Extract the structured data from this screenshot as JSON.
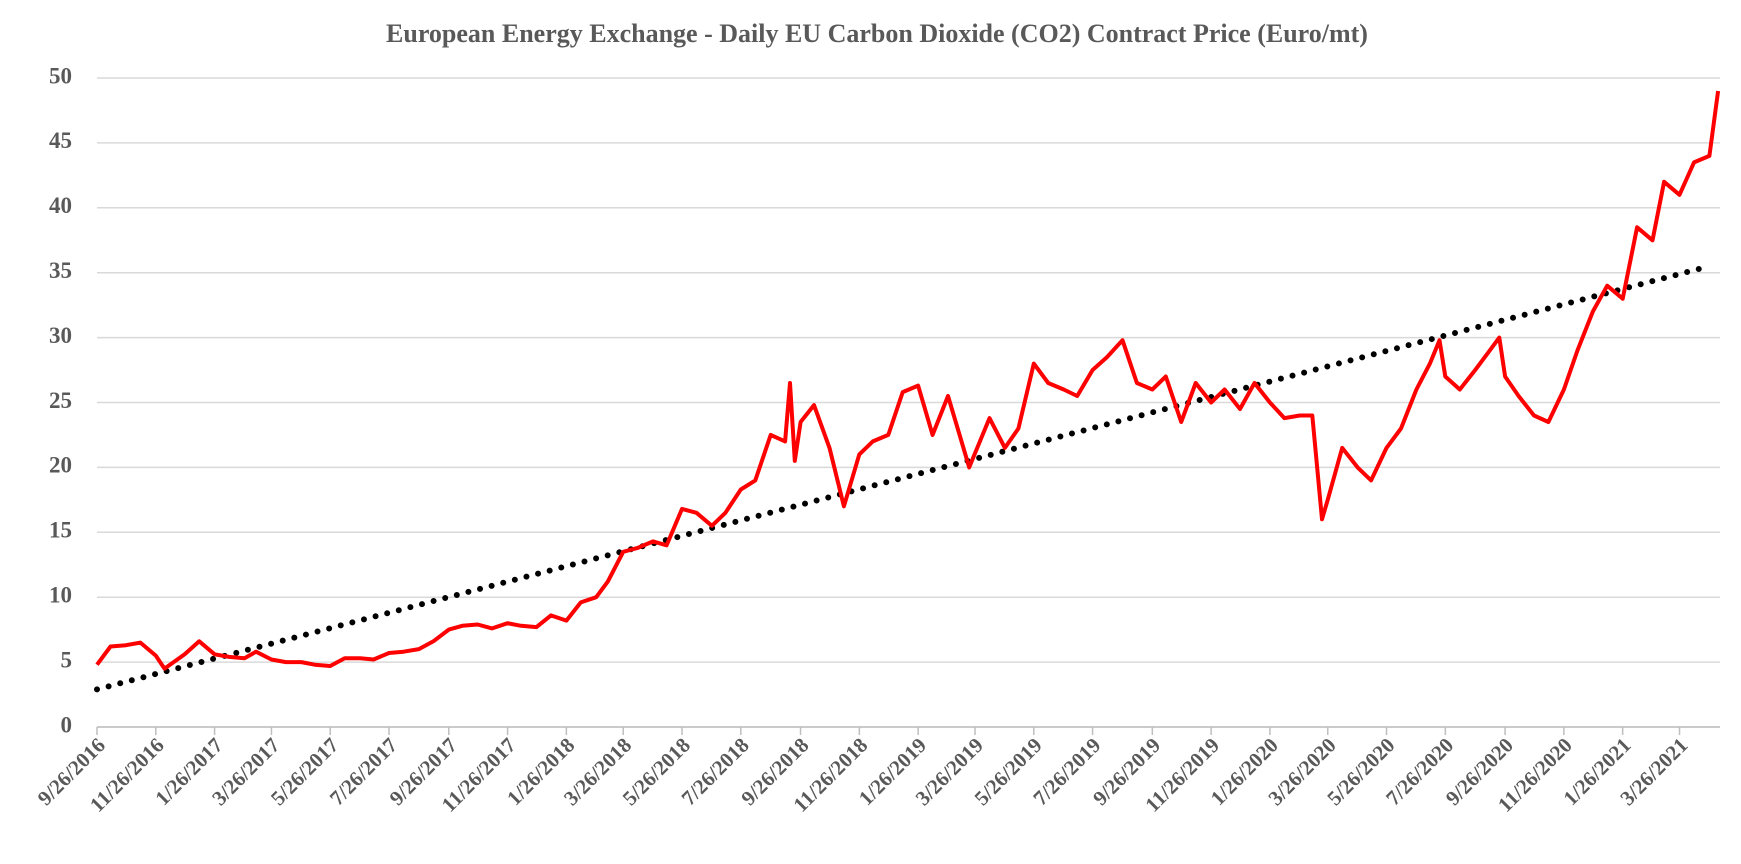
{
  "chart_data": {
    "type": "line",
    "title": "European Energy Exchange - Daily EU Carbon Dioxide (CO2) Contract Price (Euro/mt)",
    "xlim": [
      "9/26/2016",
      "5/7/2021"
    ],
    "xticks": [
      "9/26/2016",
      "11/26/2016",
      "1/26/2017",
      "3/26/2017",
      "5/26/2017",
      "7/26/2017",
      "9/26/2017",
      "11/26/2017",
      "1/26/2018",
      "3/26/2018",
      "5/26/2018",
      "7/26/2018",
      "9/26/2018",
      "11/26/2018",
      "1/26/2019",
      "3/26/2019",
      "5/26/2019",
      "7/26/2019",
      "9/26/2019",
      "11/26/2019",
      "1/26/2020",
      "3/26/2020",
      "5/26/2020",
      "7/26/2020",
      "9/26/2020",
      "11/26/2020",
      "1/26/2021",
      "3/26/2021"
    ],
    "ylim": [
      0,
      50
    ],
    "yticks": [
      0,
      5,
      10,
      15,
      20,
      25,
      30,
      35,
      40,
      45,
      50
    ],
    "grid": true,
    "series": [
      {
        "color": "#ff0000",
        "x": [
          "9/26/2016",
          "10/10/2016",
          "10/26/2016",
          "11/10/2016",
          "11/26/2016",
          "12/5/2016",
          "12/26/2016",
          "1/10/2017",
          "1/26/2017",
          "2/10/2017",
          "2/26/2017",
          "3/10/2017",
          "3/26/2017",
          "4/10/2017",
          "4/26/2017",
          "5/10/2017",
          "5/26/2017",
          "6/10/2017",
          "6/26/2017",
          "7/10/2017",
          "7/26/2017",
          "8/10/2017",
          "8/26/2017",
          "9/10/2017",
          "9/26/2017",
          "10/10/2017",
          "10/26/2017",
          "11/10/2017",
          "11/26/2017",
          "12/10/2017",
          "12/26/2017",
          "1/10/2018",
          "1/26/2018",
          "2/10/2018",
          "2/26/2018",
          "3/10/2018",
          "3/26/2018",
          "4/10/2018",
          "4/26/2018",
          "5/10/2018",
          "5/26/2018",
          "6/10/2018",
          "6/26/2018",
          "7/10/2018",
          "7/26/2018",
          "8/10/2018",
          "8/26/2018",
          "9/10/2018",
          "9/15/2018",
          "9/20/2018",
          "9/26/2018",
          "10/10/2018",
          "10/26/2018",
          "11/10/2018",
          "11/26/2018",
          "12/10/2018",
          "12/26/2018",
          "1/10/2019",
          "1/26/2019",
          "2/10/2019",
          "2/26/2019",
          "3/10/2019",
          "3/20/2019",
          "4/10/2019",
          "4/26/2019",
          "5/10/2019",
          "5/26/2019",
          "6/10/2019",
          "6/26/2019",
          "7/10/2019",
          "7/26/2019",
          "8/10/2019",
          "8/26/2019",
          "9/10/2019",
          "9/26/2019",
          "10/10/2019",
          "10/26/2019",
          "11/10/2019",
          "11/26/2019",
          "12/10/2019",
          "12/26/2019",
          "1/10/2020",
          "1/26/2020",
          "2/10/2020",
          "2/26/2020",
          "3/10/2020",
          "3/20/2020",
          "3/26/2020",
          "4/10/2020",
          "4/26/2020",
          "5/10/2020",
          "5/26/2020",
          "6/10/2020",
          "6/26/2020",
          "7/10/2020",
          "7/20/2020",
          "7/26/2020",
          "8/10/2020",
          "8/26/2020",
          "9/10/2020",
          "9/20/2020",
          "9/26/2020",
          "10/10/2020",
          "10/26/2020",
          "11/10/2020",
          "11/26/2020",
          "12/10/2020",
          "12/26/2020",
          "1/10/2021",
          "1/26/2021",
          "2/10/2021",
          "2/26/2021",
          "3/10/2021",
          "3/26/2021",
          "4/10/2021",
          "4/26/2021",
          "5/5/2021"
        ],
        "values": [
          4.8,
          6.2,
          6.3,
          6.5,
          5.5,
          4.5,
          5.6,
          6.6,
          5.6,
          5.4,
          5.3,
          5.8,
          5.2,
          5.0,
          5.0,
          4.8,
          4.7,
          5.3,
          5.3,
          5.2,
          5.7,
          5.8,
          6.0,
          6.6,
          7.5,
          7.8,
          7.9,
          7.6,
          8.0,
          7.8,
          7.7,
          8.6,
          8.2,
          9.6,
          10.0,
          11.2,
          13.5,
          13.8,
          14.3,
          14.0,
          16.8,
          16.5,
          15.5,
          16.5,
          18.3,
          19.0,
          22.5,
          22.0,
          26.5,
          20.5,
          23.5,
          24.8,
          21.5,
          17.0,
          21.0,
          22.0,
          22.5,
          25.8,
          26.3,
          22.5,
          25.5,
          22.5,
          20.0,
          23.8,
          21.5,
          23.0,
          28.0,
          26.5,
          26.0,
          25.5,
          27.5,
          28.5,
          29.8,
          26.5,
          26.0,
          27.0,
          23.5,
          26.5,
          25.0,
          26.0,
          24.5,
          26.5,
          25.0,
          23.8,
          24.0,
          24.0,
          16.0,
          17.5,
          21.5,
          20.0,
          19.0,
          21.5,
          23.0,
          26.0,
          28.0,
          29.8,
          27.0,
          26.0,
          27.5,
          29.0,
          30.0,
          27.0,
          25.5,
          24.0,
          23.5,
          26.0,
          29.0,
          32.0,
          34.0,
          33.0,
          38.5,
          37.5,
          42.0,
          41.0,
          43.5,
          44.0,
          49.0
        ]
      }
    ],
    "trendline": {
      "color": "#000000",
      "style": "dotted",
      "x": [
        "9/26/2016",
        "4/26/2021"
      ],
      "values": [
        2.9,
        35.5
      ]
    }
  }
}
